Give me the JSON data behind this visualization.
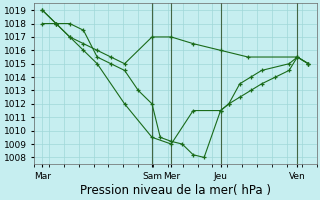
{
  "xlabel": "Pression niveau de la mer( hPa )",
  "background_color": "#c6eef0",
  "grid_color": "#a0d8d8",
  "line_color": "#1a6b1a",
  "ylim": [
    1007.5,
    1019.5
  ],
  "yticks": [
    1008,
    1009,
    1010,
    1011,
    1012,
    1013,
    1014,
    1015,
    1016,
    1017,
    1018,
    1019
  ],
  "day_labels": [
    "Mar",
    "Sam",
    "Mer",
    "Jeu",
    "Ven"
  ],
  "day_positions": [
    0,
    40,
    47,
    65,
    93
  ],
  "vline_positions": [
    40,
    47,
    65,
    93
  ],
  "xlim": [
    -3,
    100
  ],
  "xlabel_fontsize": 8.5,
  "tick_fontsize": 6.5,
  "series": [
    {
      "x": [
        0,
        5,
        10,
        15,
        20,
        25,
        30,
        35,
        40,
        43,
        47,
        51,
        55,
        59,
        65,
        68,
        72,
        76,
        80,
        85,
        90,
        93,
        97
      ],
      "y": [
        1019,
        1018,
        1018,
        1017.5,
        1015.5,
        1015,
        1014.5,
        1013,
        1012,
        1009.5,
        1009.2,
        1009,
        1008.2,
        1008,
        1011.5,
        1012,
        1012.5,
        1013,
        1013.5,
        1014,
        1014.5,
        1015.5,
        1015
      ]
    },
    {
      "x": [
        0,
        5,
        10,
        15,
        20,
        25,
        30,
        40,
        47,
        55,
        65,
        75,
        93,
        97
      ],
      "y": [
        1018,
        1018,
        1017,
        1016.5,
        1016,
        1015.5,
        1015,
        1017,
        1017,
        1016.5,
        1016,
        1015.5,
        1015.5,
        1015
      ]
    },
    {
      "x": [
        0,
        5,
        10,
        15,
        20,
        30,
        40,
        47,
        55,
        65,
        68,
        72,
        76,
        80,
        90,
        93,
        97
      ],
      "y": [
        1019,
        1018,
        1017,
        1016,
        1015,
        1012,
        1009.5,
        1009.0,
        1011.5,
        1011.5,
        1012,
        1013.5,
        1014,
        1014.5,
        1015,
        1015.5,
        1015
      ]
    }
  ]
}
